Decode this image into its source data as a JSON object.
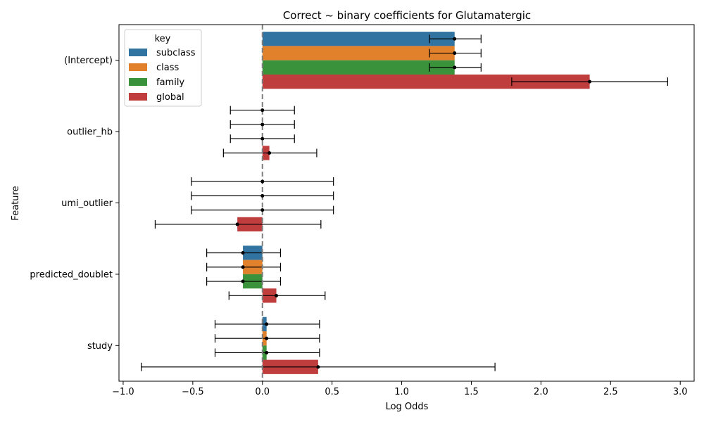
{
  "chart_data": {
    "type": "bar",
    "orientation": "horizontal",
    "title": "Correct ~ binary coefficients for Glutamatergic",
    "xlabel": "Log Odds",
    "ylabel": "Feature",
    "xlim": [
      -1.03,
      3.1
    ],
    "xticks": [
      -1.0,
      -0.5,
      0.0,
      0.5,
      1.0,
      1.5,
      2.0,
      2.5,
      3.0
    ],
    "xtick_labels": [
      "−1.0",
      "−0.5",
      "0.0",
      "0.5",
      "1.0",
      "1.5",
      "2.0",
      "2.5",
      "3.0"
    ],
    "reference_line": 0,
    "categories": [
      "(Intercept)",
      "outlier_hb",
      "umi_outlier",
      "predicted_doublet",
      "study"
    ],
    "legend": {
      "title": "key",
      "position": "upper-left"
    },
    "series": [
      {
        "name": "subclass",
        "color": "#3274a1",
        "values": [
          1.38,
          0.0,
          0.0,
          -0.14,
          0.03
        ],
        "ci_low": [
          1.2,
          -0.23,
          -0.51,
          -0.4,
          -0.34
        ],
        "ci_high": [
          1.57,
          0.23,
          0.51,
          0.13,
          0.41
        ]
      },
      {
        "name": "class",
        "color": "#e1812c",
        "values": [
          1.38,
          0.0,
          0.0,
          -0.14,
          0.03
        ],
        "ci_low": [
          1.2,
          -0.23,
          -0.51,
          -0.4,
          -0.34
        ],
        "ci_high": [
          1.57,
          0.23,
          0.51,
          0.13,
          0.41
        ]
      },
      {
        "name": "family",
        "color": "#3a923a",
        "values": [
          1.38,
          0.0,
          0.0,
          -0.14,
          0.03
        ],
        "ci_low": [
          1.2,
          -0.23,
          -0.51,
          -0.4,
          -0.34
        ],
        "ci_high": [
          1.57,
          0.23,
          0.51,
          0.13,
          0.41
        ]
      },
      {
        "name": "global",
        "color": "#c03d3e",
        "values": [
          2.35,
          0.05,
          -0.18,
          0.1,
          0.4
        ],
        "ci_low": [
          1.79,
          -0.28,
          -0.77,
          -0.24,
          -0.87
        ],
        "ci_high": [
          2.91,
          0.39,
          0.42,
          0.45,
          1.67
        ]
      }
    ]
  }
}
